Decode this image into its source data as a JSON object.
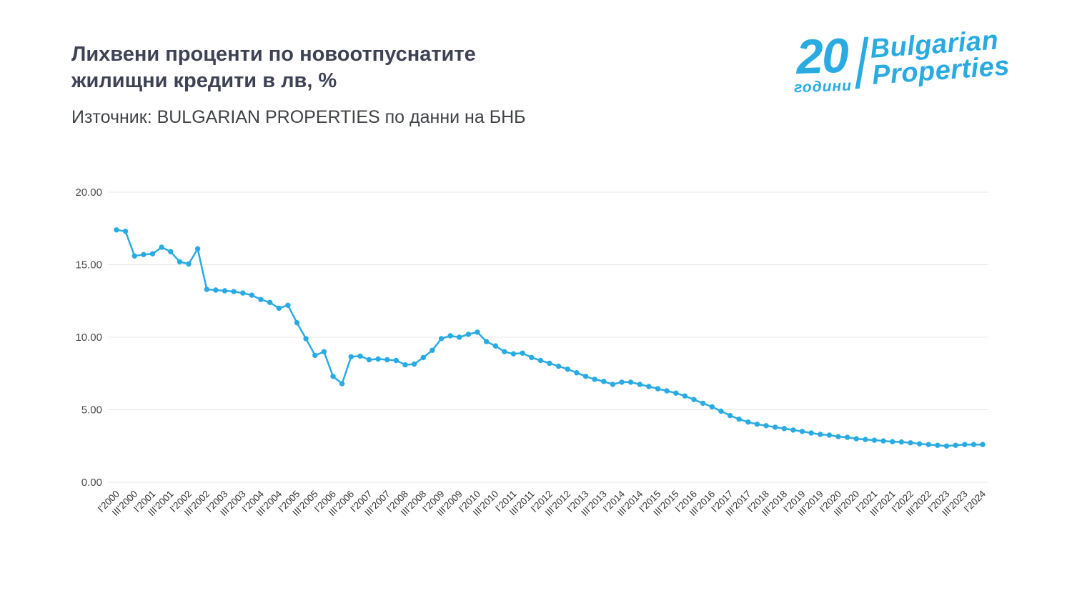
{
  "page": {
    "title_line1": "Лихвени проценти по новоотпуснатите",
    "title_line2": "жилищни кредити в лв, %",
    "subtitle": "Източник: BULGARIAN PROPERTIES по данни на БНБ"
  },
  "logo": {
    "number": "20",
    "years_label": "години",
    "brand_line1": "Bulgarian",
    "brand_line2": "Properties",
    "color": "#29abe2"
  },
  "chart_data": {
    "type": "line",
    "title": "Лихвени проценти по новоотпуснатите жилищни кредити в лв, %",
    "source": "Източник: BULGARIAN PROPERTIES по данни на БНБ",
    "x_tick_labels": [
      "I'2000",
      "III'2000",
      "I'2001",
      "III'2001",
      "I'2002",
      "III'2002",
      "I'2003",
      "III'2003",
      "I'2004",
      "III'2004",
      "I'2005",
      "III'2005",
      "I'2006",
      "III'2006",
      "I'2007",
      "III'2007",
      "I'2008",
      "III'2008",
      "I'2009",
      "III'2009",
      "I'2010",
      "III'2010",
      "I'2011",
      "III'2011",
      "I'2012",
      "III'2012",
      "I'2013",
      "III'2013",
      "I'2014",
      "III'2014",
      "I'2015",
      "III'2015",
      "I'2016",
      "III'2016",
      "I'2017",
      "III'2017",
      "I'2018",
      "III'2018",
      "I'2019",
      "III'2019",
      "I'2020",
      "III'2020",
      "I'2021",
      "III'2021",
      "I'2022",
      "III'2022",
      "I'2023",
      "III'2023",
      "I'2024"
    ],
    "ticks_every": 2,
    "values": [
      17.4,
      17.3,
      15.6,
      15.7,
      15.75,
      16.2,
      15.9,
      15.2,
      15.05,
      16.1,
      13.3,
      13.25,
      13.2,
      13.15,
      13.05,
      12.9,
      12.6,
      12.4,
      12.0,
      12.2,
      11.0,
      9.9,
      8.75,
      9.0,
      7.3,
      6.8,
      8.65,
      8.7,
      8.45,
      8.5,
      8.45,
      8.4,
      8.1,
      8.15,
      8.6,
      9.1,
      9.9,
      10.1,
      10.0,
      10.2,
      10.35,
      9.7,
      9.4,
      9.0,
      8.85,
      8.9,
      8.6,
      8.4,
      8.2,
      8.0,
      7.8,
      7.55,
      7.3,
      7.1,
      6.95,
      6.75,
      6.9,
      6.9,
      6.75,
      6.6,
      6.45,
      6.3,
      6.15,
      5.95,
      5.7,
      5.45,
      5.2,
      4.9,
      4.6,
      4.35,
      4.15,
      4.0,
      3.9,
      3.8,
      3.7,
      3.6,
      3.5,
      3.4,
      3.3,
      3.25,
      3.15,
      3.1,
      3.0,
      2.95,
      2.9,
      2.85,
      2.8,
      2.78,
      2.72,
      2.65,
      2.6,
      2.55,
      2.5,
      2.55,
      2.6,
      2.6,
      2.6
    ],
    "ylim": [
      0,
      20
    ],
    "yticks": [
      "0.00",
      "5.00",
      "10.00",
      "15.00",
      "20.00"
    ],
    "grid": true,
    "legend": false,
    "line_color": "#29abe2",
    "marker": "circle"
  }
}
